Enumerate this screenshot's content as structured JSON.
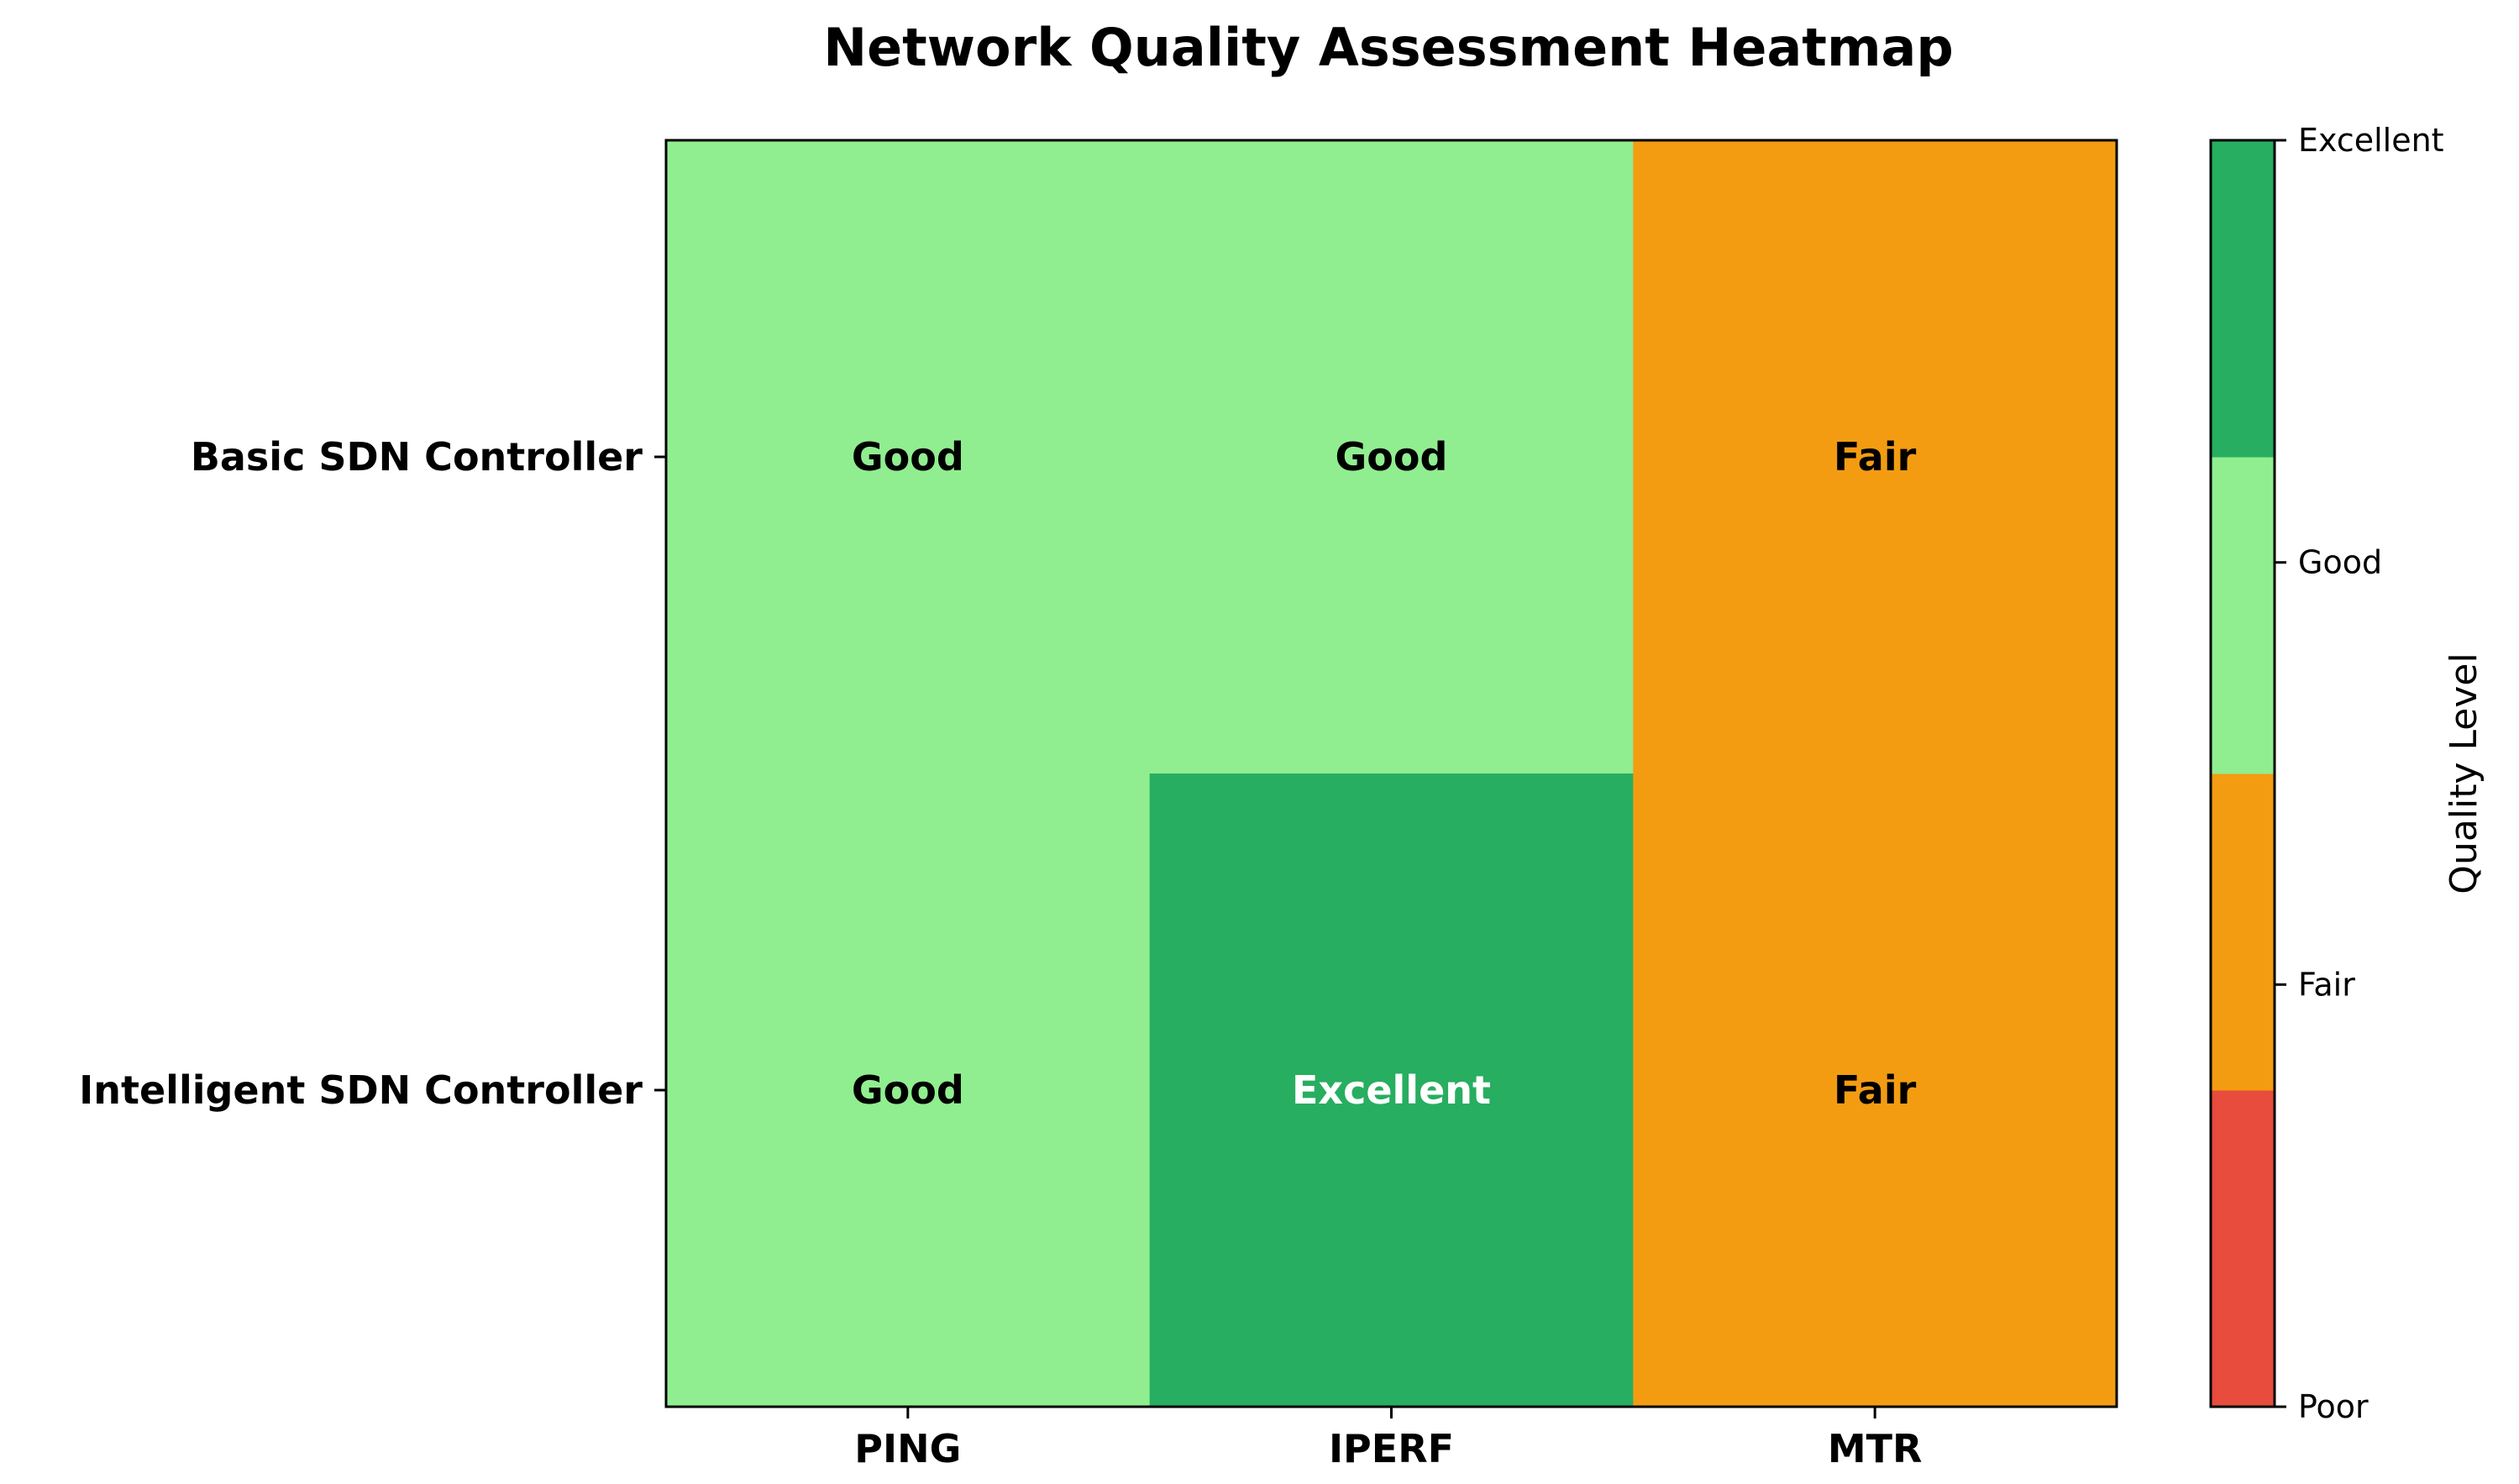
{
  "chart_data": {
    "type": "heatmap",
    "title": "Network Quality Assessment Heatmap",
    "rows": [
      "Basic SDN Controller",
      "Intelligent SDN Controller"
    ],
    "columns": [
      "PING",
      "IPERF",
      "MTR"
    ],
    "values": [
      [
        "Good",
        "Good",
        "Fair"
      ],
      [
        "Good",
        "Excellent",
        "Fair"
      ]
    ],
    "levels": [
      "Poor",
      "Fair",
      "Good",
      "Excellent"
    ],
    "level_colors": {
      "Poor": "#e74c3c",
      "Fair": "#f39c12",
      "Good": "#90ee90",
      "Excellent": "#27ae60"
    },
    "label_colors": {
      "Poor": "#000000",
      "Fair": "#000000",
      "Good": "#000000",
      "Excellent": "#ffffff"
    },
    "colorbar": {
      "label": "Quality Level",
      "tick_labels": [
        "Poor",
        "Fair",
        "Good",
        "Excellent"
      ]
    }
  }
}
